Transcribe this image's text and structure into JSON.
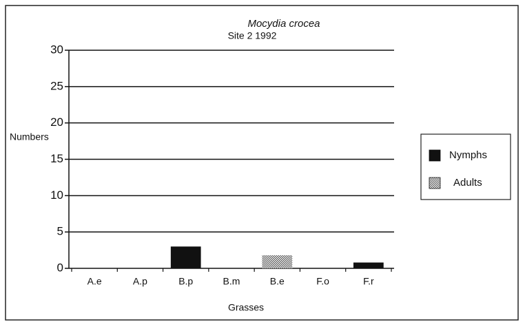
{
  "chart_data": {
    "type": "bar",
    "stacked": true,
    "title": "Mocydia crocea",
    "subtitle": "Site 2 1992",
    "x_label": "Grasses",
    "y_label": "Numbers",
    "categories": [
      "A.e",
      "A.p",
      "B.p",
      "B.m",
      "B.e",
      "F.o",
      "F.r"
    ],
    "series": [
      {
        "name": "Nymphs",
        "color": "#111111",
        "pattern": "solid",
        "values": [
          0,
          0,
          3,
          0,
          0,
          0,
          0.8
        ]
      },
      {
        "name": "Adults",
        "color": "#555555",
        "pattern": "crosshatch",
        "values": [
          0,
          0,
          0,
          0,
          1.8,
          0,
          0
        ]
      }
    ],
    "ylim": [
      0,
      30
    ],
    "yticks": [
      0,
      5,
      10,
      15,
      20,
      25,
      30
    ],
    "grid": true,
    "legend": "right"
  }
}
